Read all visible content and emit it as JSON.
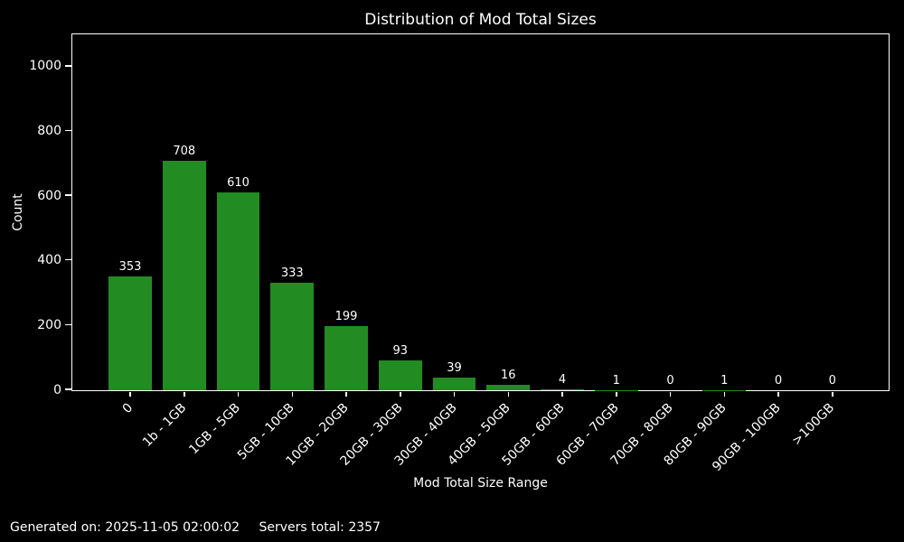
{
  "figure": {
    "footer": {
      "generated": "Generated on: 2025-11-05 02:00:02",
      "servers_total": "Servers total: 2357"
    },
    "colors": {
      "background": "#000000",
      "text": "#ffffff",
      "bar": "#228B22",
      "axis": "#ffffff"
    }
  },
  "chart_data": {
    "type": "bar",
    "title": "Distribution of Mod Total Sizes",
    "xlabel": "Mod Total Size Range",
    "ylabel": "Count",
    "categories": [
      "0",
      "1b - 1GB",
      "1GB - 5GB",
      "5GB - 10GB",
      "10GB - 20GB",
      "20GB - 30GB",
      "30GB - 40GB",
      "40GB - 50GB",
      "50GB - 60GB",
      "60GB - 70GB",
      "70GB - 80GB",
      "80GB - 90GB",
      "90GB - 100GB",
      ">100GB"
    ],
    "values": [
      353,
      708,
      610,
      333,
      199,
      93,
      39,
      16,
      4,
      1,
      0,
      1,
      0,
      0
    ],
    "bar_labels_shown": true,
    "yticks": [
      0,
      200,
      400,
      600,
      800,
      1000
    ],
    "ylim": [
      0,
      1097
    ],
    "grid": false,
    "legend": "none",
    "x_tick_rotation_deg": 45,
    "bar_color": "#228B22",
    "background_color": "#000000",
    "text_color": "#ffffff"
  }
}
